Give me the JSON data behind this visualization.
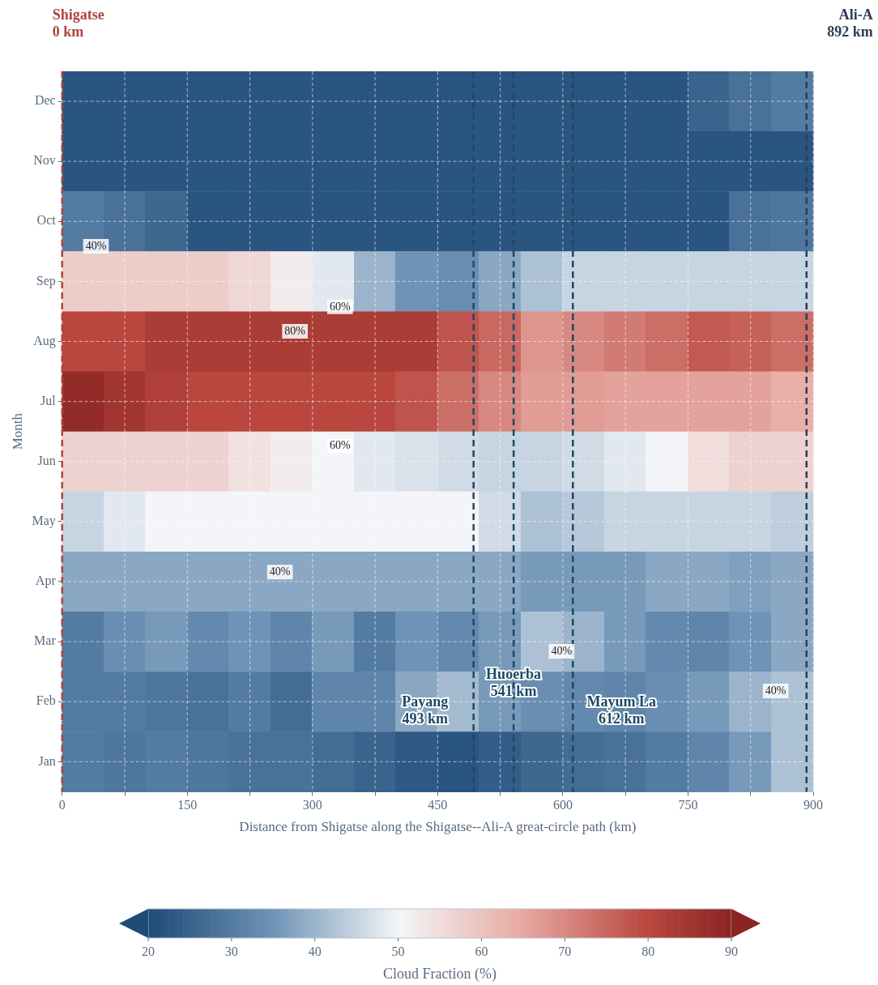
{
  "chart_data": {
    "type": "heatmap",
    "xlabel": "Distance from Shigatse along the Shigatse--Ali-A great-circle path (km)",
    "ylabel": "Month",
    "clabel": "Cloud Fraction (%)",
    "x": [
      25,
      75,
      125,
      175,
      225,
      275,
      325,
      375,
      425,
      475,
      525,
      575,
      625,
      675,
      725,
      775,
      825,
      875
    ],
    "y_categories": [
      "Dec",
      "Nov",
      "Oct",
      "Sep",
      "Aug",
      "Jul",
      "Jun",
      "May",
      "Apr",
      "Mar",
      "Feb",
      "Jan"
    ],
    "cells": [
      [
        22,
        22,
        22,
        22,
        22,
        22,
        22,
        22,
        22,
        22,
        22,
        22,
        22,
        22,
        22,
        25,
        28,
        30
      ],
      [
        22,
        22,
        22,
        22,
        22,
        22,
        22,
        22,
        22,
        22,
        22,
        22,
        22,
        22,
        22,
        22,
        22,
        22
      ],
      [
        30,
        28,
        26,
        22,
        22,
        22,
        22,
        22,
        22,
        22,
        22,
        22,
        22,
        22,
        22,
        22,
        28,
        29
      ],
      [
        58,
        58,
        58,
        58,
        56,
        52,
        48,
        40,
        35,
        34,
        38,
        42,
        45,
        45,
        45,
        45,
        45,
        45
      ],
      [
        80,
        80,
        83,
        83,
        83,
        83,
        83,
        83,
        83,
        78,
        75,
        68,
        70,
        72,
        74,
        77,
        76,
        74
      ],
      [
        88,
        85,
        82,
        80,
        80,
        80,
        80,
        80,
        78,
        74,
        70,
        67,
        67,
        66,
        66,
        66,
        66,
        64
      ],
      [
        57,
        57,
        57,
        57,
        54,
        52,
        50,
        48,
        47,
        46,
        45,
        45,
        46,
        48,
        50,
        55,
        57,
        57
      ],
      [
        45,
        48,
        50,
        50,
        50,
        50,
        50,
        50,
        50,
        50,
        46,
        42,
        43,
        45,
        45,
        45,
        45,
        44
      ],
      [
        38,
        38,
        38,
        38,
        38,
        38,
        38,
        38,
        38,
        38,
        38,
        36,
        36,
        36,
        38,
        38,
        37,
        38
      ],
      [
        30,
        34,
        36,
        33,
        35,
        32,
        36,
        30,
        35,
        33,
        36,
        42,
        40,
        36,
        33,
        32,
        35,
        38
      ],
      [
        30,
        30,
        29,
        28,
        30,
        27,
        32,
        32,
        38,
        41,
        36,
        34,
        33,
        32,
        34,
        36,
        40,
        42
      ],
      [
        30,
        29,
        30,
        29,
        28,
        28,
        27,
        25,
        23,
        22,
        24,
        26,
        27,
        28,
        30,
        32,
        36,
        42
      ]
    ],
    "xlim": [
      0,
      900
    ],
    "xticks": [
      0,
      {
        "value": 75,
        "label": null
      },
      150,
      {
        "value": 225,
        "label": null
      },
      300,
      {
        "value": 375,
        "label": null
      },
      450,
      {
        "value": 525,
        "label": null
      },
      600,
      {
        "value": 675,
        "label": null
      },
      750,
      {
        "value": 825,
        "label": null
      },
      900
    ],
    "clim": [
      20,
      90
    ],
    "cticks": [
      20,
      30,
      40,
      50,
      60,
      70,
      80,
      90
    ],
    "grid": true,
    "ref_lines": [
      {
        "axis": "x",
        "value": 0,
        "label": "Shigatse\n0 km",
        "color": "#b0443c",
        "line_style": "dashed"
      },
      {
        "axis": "x",
        "value": 493,
        "label": "Payang\n493 km",
        "color": "#1d4a63",
        "line_style": "dashed"
      },
      {
        "axis": "x",
        "value": 541,
        "label": "Huoerba\n541 km",
        "color": "#1d4a63",
        "line_style": "dashed"
      },
      {
        "axis": "x",
        "value": 612,
        "label": "Mayum La\n612 km",
        "color": "#1d4a63",
        "line_style": "dashed"
      },
      {
        "axis": "x",
        "value": 892,
        "label": "Ali-A\n892 km",
        "color": "#2c3e55",
        "line_style": "dashed"
      }
    ],
    "annotations": [
      "40%",
      "60%",
      "80%",
      "60%",
      "40%",
      "40%",
      "40%"
    ]
  }
}
